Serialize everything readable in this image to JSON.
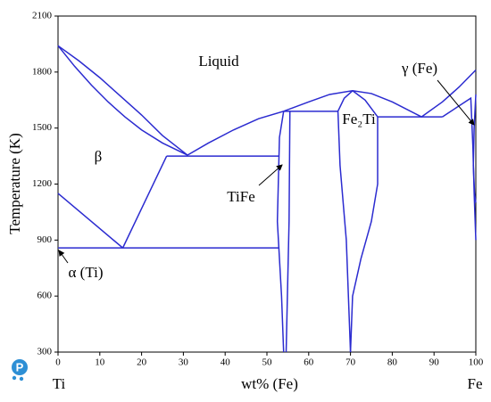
{
  "chart_data": {
    "type": "line",
    "ylabel": "Temperature (K)",
    "xlabel": "wt% (Fe)",
    "xlabel_left": "Ti",
    "xlabel_right": "Fe",
    "xlim": [
      0,
      100
    ],
    "xticks": [
      0,
      10,
      20,
      30,
      40,
      50,
      60,
      70,
      80,
      90,
      100
    ],
    "ylim": [
      300,
      2100
    ],
    "yticks": [
      300,
      600,
      900,
      1200,
      1500,
      1800,
      2100
    ],
    "color": "#2b2bd0",
    "annotations": [
      "Liquid",
      "β",
      "α (Ti)",
      "TiFe",
      "Fe₂Ti",
      "γ (Fe)"
    ],
    "series": [
      {
        "x": [
          0,
          5,
          10,
          15,
          20,
          25,
          31
        ],
        "values": [
          1941,
          1860,
          1770,
          1670,
          1570,
          1460,
          1355
        ]
      },
      {
        "x": [
          0,
          4,
          8,
          12,
          16,
          20,
          25,
          31
        ],
        "values": [
          1941,
          1830,
          1730,
          1640,
          1560,
          1490,
          1420,
          1355
        ]
      },
      {
        "x": [
          31,
          36,
          42,
          48,
          54,
          60,
          65,
          70.5,
          75,
          80,
          87,
          92,
          96,
          100
        ],
        "values": [
          1355,
          1420,
          1490,
          1550,
          1590,
          1640,
          1680,
          1700,
          1685,
          1640,
          1560,
          1640,
          1720,
          1811
        ]
      },
      {
        "x": [
          26,
          53
        ],
        "values": [
          1350,
          1350
        ]
      },
      {
        "x": [
          26,
          15.5
        ],
        "values": [
          1350,
          858
        ]
      },
      {
        "x": [
          0,
          15.5
        ],
        "values": [
          1150,
          858
        ]
      },
      {
        "x": [
          0,
          53
        ],
        "values": [
          858,
          858
        ]
      },
      {
        "x": [
          54,
          53,
          52.5,
          53.5,
          54
        ],
        "values": [
          1590,
          1450,
          1000,
          600,
          300
        ]
      },
      {
        "x": [
          54,
          55.5,
          55.3,
          54.6
        ],
        "values": [
          1590,
          1590,
          1000,
          300
        ]
      },
      {
        "x": [
          55.5,
          67
        ],
        "values": [
          1590,
          1590
        ]
      },
      {
        "x": [
          70.5,
          68.5,
          67,
          67.5,
          69,
          70
        ],
        "values": [
          1700,
          1660,
          1590,
          1300,
          900,
          300
        ]
      },
      {
        "x": [
          70.5,
          73.5,
          76.5,
          76.5,
          75,
          72.5,
          70.5,
          70
        ],
        "values": [
          1700,
          1650,
          1560,
          1200,
          1000,
          800,
          600,
          300
        ]
      },
      {
        "x": [
          76.5,
          92
        ],
        "values": [
          1560,
          1560
        ]
      },
      {
        "x": [
          92,
          98.8,
          99.3,
          99.6,
          100
        ],
        "values": [
          1560,
          1660,
          1400,
          1150,
          900
        ]
      },
      {
        "x": [
          100,
          99.6,
          99.4,
          99.7,
          100
        ],
        "values": [
          1680,
          1500,
          1300,
          1150,
          1100
        ]
      }
    ]
  }
}
